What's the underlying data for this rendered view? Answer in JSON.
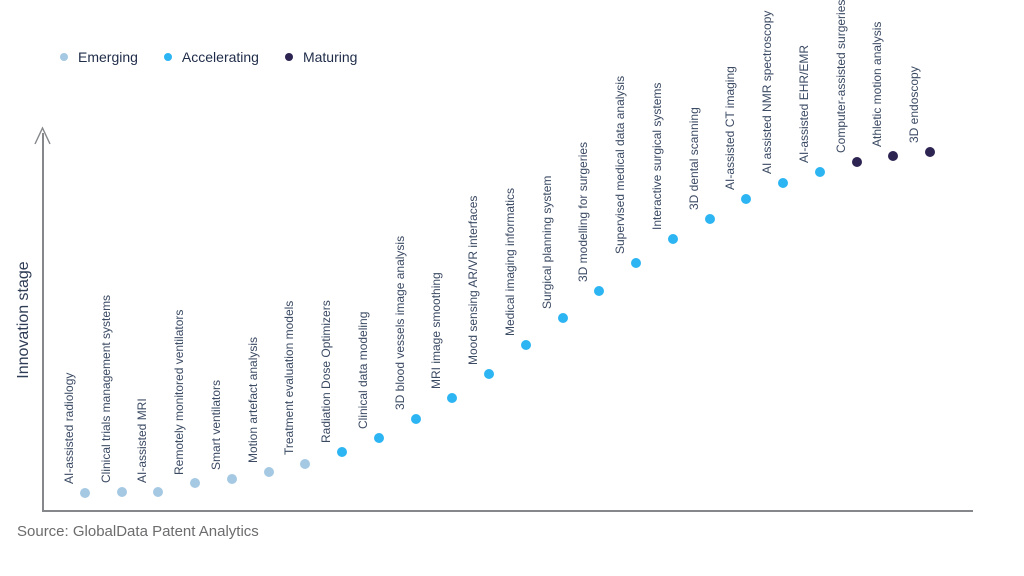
{
  "legend": {
    "items": [
      {
        "label": "Emerging",
        "color": "#a5c9e3"
      },
      {
        "label": "Accelerating",
        "color": "#2cb5f2"
      },
      {
        "label": "Maturing",
        "color": "#2e2452"
      }
    ]
  },
  "axis": {
    "y_label": "Innovation stage"
  },
  "source": "Source: GlobalData Patent Analytics",
  "chart_data": {
    "type": "scatter",
    "title": "",
    "xlabel": "",
    "ylabel": "Innovation stage",
    "grid": false,
    "legend_position": "top-left",
    "value_note": "value = relative innovation stage height, 0 = x-axis baseline, 100 = top of y-axis",
    "stage_colors": {
      "emerging": "#a5c9e3",
      "accelerating": "#2cb5f2",
      "maturing": "#2e2452"
    },
    "points": [
      {
        "label": "AI-assisted radiology",
        "stage": "emerging",
        "value": 4.6
      },
      {
        "label": "Clinical trials management systems",
        "stage": "emerging",
        "value": 5.1
      },
      {
        "label": "AI-assisted MRI",
        "stage": "emerging",
        "value": 5.1
      },
      {
        "label": "Remotely monitored ventilators",
        "stage": "emerging",
        "value": 7.3
      },
      {
        "label": "Smart ventilators",
        "stage": "emerging",
        "value": 8.4
      },
      {
        "label": "Motion artefact analysis",
        "stage": "emerging",
        "value": 10.3
      },
      {
        "label": "Treatment evaluation models",
        "stage": "emerging",
        "value": 12.7
      },
      {
        "label": "Radiation Dose Optimizers",
        "stage": "accelerating",
        "value": 15.7
      },
      {
        "label": "Clinical data modeling",
        "stage": "accelerating",
        "value": 19.7
      },
      {
        "label": "3D blood vessels image analysis",
        "stage": "accelerating",
        "value": 24.6
      },
      {
        "label": "MRI image smoothing",
        "stage": "accelerating",
        "value": 30.3
      },
      {
        "label": "Mood sensing AR/VR interfaces",
        "stage": "accelerating",
        "value": 37.0
      },
      {
        "label": "Medical imaging informatics",
        "stage": "accelerating",
        "value": 44.6
      },
      {
        "label": "Surgical planning system",
        "stage": "accelerating",
        "value": 51.9
      },
      {
        "label": "3D modelling for surgeries",
        "stage": "accelerating",
        "value": 59.2
      },
      {
        "label": "Supervised medical data analysis",
        "stage": "accelerating",
        "value": 66.8
      },
      {
        "label": "Interactive surgical systems",
        "stage": "accelerating",
        "value": 73.5
      },
      {
        "label": "3D dental scanning",
        "stage": "accelerating",
        "value": 78.9
      },
      {
        "label": "AI-assisted CT imaging",
        "stage": "accelerating",
        "value": 84.1
      },
      {
        "label": "AI assisted NMR spectroscopy",
        "stage": "accelerating",
        "value": 88.4
      },
      {
        "label": "AI-assisted EHR/EMR",
        "stage": "accelerating",
        "value": 91.4
      },
      {
        "label": "Computer-assisted surgeries",
        "stage": "maturing",
        "value": 94.3
      },
      {
        "label": "Athletic motion analysis",
        "stage": "maturing",
        "value": 95.9
      },
      {
        "label": "3D endoscopy",
        "stage": "maturing",
        "value": 96.8
      }
    ]
  }
}
